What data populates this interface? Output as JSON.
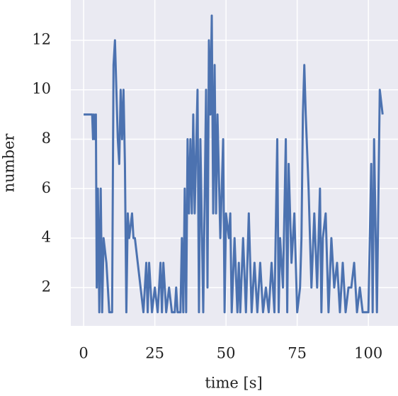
{
  "chart_data": {
    "type": "line",
    "xlabel": "time [s]",
    "ylabel": "number",
    "x": [
      0,
      1,
      2,
      3,
      3.3,
      3.6,
      4,
      4.3,
      4.6,
      5,
      5.5,
      6,
      6.5,
      7,
      8,
      9,
      10,
      10.5,
      11,
      12,
      12.5,
      13,
      13.5,
      14,
      14.5,
      15,
      15.5,
      16,
      17,
      17.5,
      18,
      19,
      20,
      21,
      22,
      22.5,
      23,
      24,
      25,
      26,
      27,
      27.5,
      28,
      29,
      30,
      31,
      32,
      32.5,
      33,
      34,
      34.5,
      35,
      35.5,
      36,
      36.5,
      37,
      37.5,
      38,
      38.5,
      39,
      40,
      40.5,
      41,
      42,
      43,
      43.5,
      44,
      44.5,
      45,
      45.5,
      46,
      46.5,
      47,
      48,
      49,
      49.5,
      50,
      51,
      51.5,
      52,
      53,
      54,
      54.5,
      55,
      56,
      57,
      58,
      59,
      60,
      61,
      62,
      63,
      64,
      65,
      66,
      67,
      68,
      68.5,
      69,
      70,
      71,
      71.5,
      72,
      73,
      74,
      75,
      76,
      76.5,
      77,
      77.5,
      78,
      79,
      80,
      81,
      82,
      83,
      83.5,
      84,
      85,
      86,
      87,
      88,
      89,
      90,
      91,
      92,
      93,
      94,
      95,
      96,
      97,
      98,
      99,
      100,
      101,
      101.5,
      102,
      103,
      104,
      105
    ],
    "series": [
      {
        "color": "#4c72b0",
        "values": [
          9,
          9,
          9,
          9,
          8,
          9,
          8,
          9,
          2,
          6,
          1,
          6,
          1,
          4,
          3,
          1,
          1,
          11,
          12,
          8,
          7,
          10,
          8,
          10,
          7,
          1,
          5,
          4,
          5,
          4,
          4,
          3,
          2,
          1,
          3,
          1,
          3,
          1,
          2,
          1,
          3,
          1,
          3,
          1,
          2,
          1,
          1,
          2,
          1,
          1,
          4,
          1,
          6,
          1,
          8,
          5,
          8,
          5,
          9,
          5,
          10,
          1,
          8,
          1,
          10,
          2,
          12,
          9,
          13,
          5,
          11,
          5,
          9,
          4,
          8,
          1,
          5,
          4,
          5,
          1,
          4,
          1,
          3,
          1,
          4,
          1,
          5,
          1,
          3,
          1,
          3,
          1,
          2,
          1,
          3,
          1,
          8,
          1,
          4,
          2,
          8,
          1,
          7,
          3,
          5,
          1,
          2,
          4,
          9,
          11,
          9,
          6,
          2,
          5,
          2,
          6,
          1,
          4,
          5,
          1,
          4,
          2,
          3,
          1,
          3,
          1,
          2,
          2,
          3,
          1,
          2,
          1,
          1,
          1,
          7,
          1,
          8,
          1,
          10,
          9
        ]
      }
    ],
    "xlim": [
      -4.5,
      110.4
    ],
    "ylim": [
      0.45,
      13.63
    ],
    "xticks": [
      0,
      25,
      50,
      75,
      100
    ],
    "yticks": [
      2,
      4,
      6,
      8,
      10,
      12
    ],
    "grid": true
  }
}
